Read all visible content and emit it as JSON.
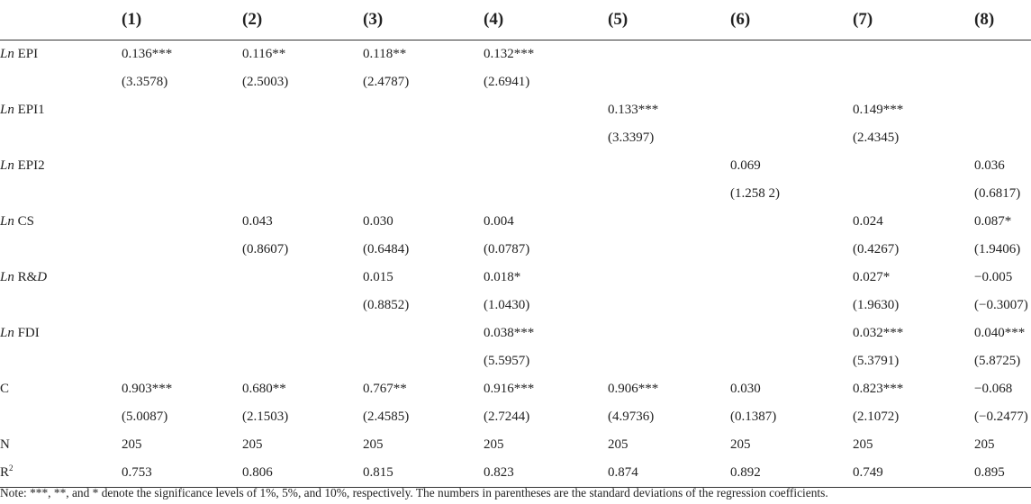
{
  "columns": [
    "(1)",
    "(2)",
    "(3)",
    "(4)",
    "(5)",
    "(6)",
    "(7)",
    "(8)"
  ],
  "rows": [
    {
      "prefix": "Ln",
      "name": " EPI",
      "cells": [
        "0.136***",
        "0.116**",
        "0.118**",
        "0.132***",
        "",
        "",
        "",
        ""
      ]
    },
    {
      "prefix": "",
      "name": "",
      "cells": [
        "(3.3578)",
        "(2.5003)",
        "(2.4787)",
        "(2.6941)",
        "",
        "",
        "",
        ""
      ]
    },
    {
      "prefix": "Ln",
      "name": " EPI1",
      "cells": [
        "",
        "",
        "",
        "",
        "0.133***",
        "",
        "0.149***",
        ""
      ]
    },
    {
      "prefix": "",
      "name": "",
      "cells": [
        "",
        "",
        "",
        "",
        "(3.3397)",
        "",
        "(2.4345)",
        ""
      ]
    },
    {
      "prefix": "Ln",
      "name": " EPI2",
      "cells": [
        "",
        "",
        "",
        "",
        "",
        "0.069",
        "",
        "0.036"
      ]
    },
    {
      "prefix": "",
      "name": "",
      "cells": [
        "",
        "",
        "",
        "",
        "",
        "(1.258 2)",
        "",
        "(0.6817)"
      ]
    },
    {
      "prefix": "Ln",
      "name": " CS",
      "cells": [
        "",
        "0.043",
        "0.030",
        "0.004",
        "",
        "",
        "0.024",
        "0.087*"
      ]
    },
    {
      "prefix": "",
      "name": "",
      "cells": [
        "",
        "(0.8607)",
        "(0.6484)",
        "(0.0787)",
        "",
        "",
        "(0.4267)",
        "(1.9406)"
      ]
    },
    {
      "prefix": "Ln",
      "name": " R&",
      "name_italic": "D",
      "cells": [
        "",
        "",
        "0.015",
        "0.018*",
        "",
        "",
        "0.027*",
        "−0.005"
      ]
    },
    {
      "prefix": "",
      "name": "",
      "cells": [
        "",
        "",
        "(0.8852)",
        "(1.0430)",
        "",
        "",
        "(1.9630)",
        "(−0.3007)"
      ]
    },
    {
      "prefix": "Ln",
      "name": " FDI",
      "cells": [
        "",
        "",
        "",
        "0.038***",
        "",
        "",
        "0.032***",
        "0.040***"
      ]
    },
    {
      "prefix": "",
      "name": "",
      "cells": [
        "",
        "",
        "",
        "(5.5957)",
        "",
        "",
        "(5.3791)",
        "(5.8725)"
      ]
    },
    {
      "prefix": "",
      "name": "C",
      "cells": [
        "0.903***",
        "0.680**",
        "0.767**",
        "0.916***",
        "0.906***",
        "0.030",
        "0.823***",
        "−0.068"
      ]
    },
    {
      "prefix": "",
      "name": "",
      "cells": [
        "(5.0087)",
        "(2.1503)",
        "(2.4585)",
        "(2.7244)",
        "(4.9736)",
        "(0.1387)",
        "(2.1072)",
        "(−0.2477)"
      ]
    },
    {
      "prefix": "",
      "name": "N",
      "cells": [
        "205",
        "205",
        "205",
        "205",
        "205",
        "205",
        "205",
        "205"
      ]
    },
    {
      "prefix": "",
      "name": "R",
      "sup": "2",
      "cells": [
        "0.753",
        "0.806",
        "0.815",
        "0.823",
        "0.874",
        "0.892",
        "0.749",
        "0.895"
      ]
    }
  ],
  "note": "Note: ***, **, and * denote the significance levels of 1%, 5%, and 10%, respectively. The numbers in parentheses are the standard deviations of the regression coefficients."
}
